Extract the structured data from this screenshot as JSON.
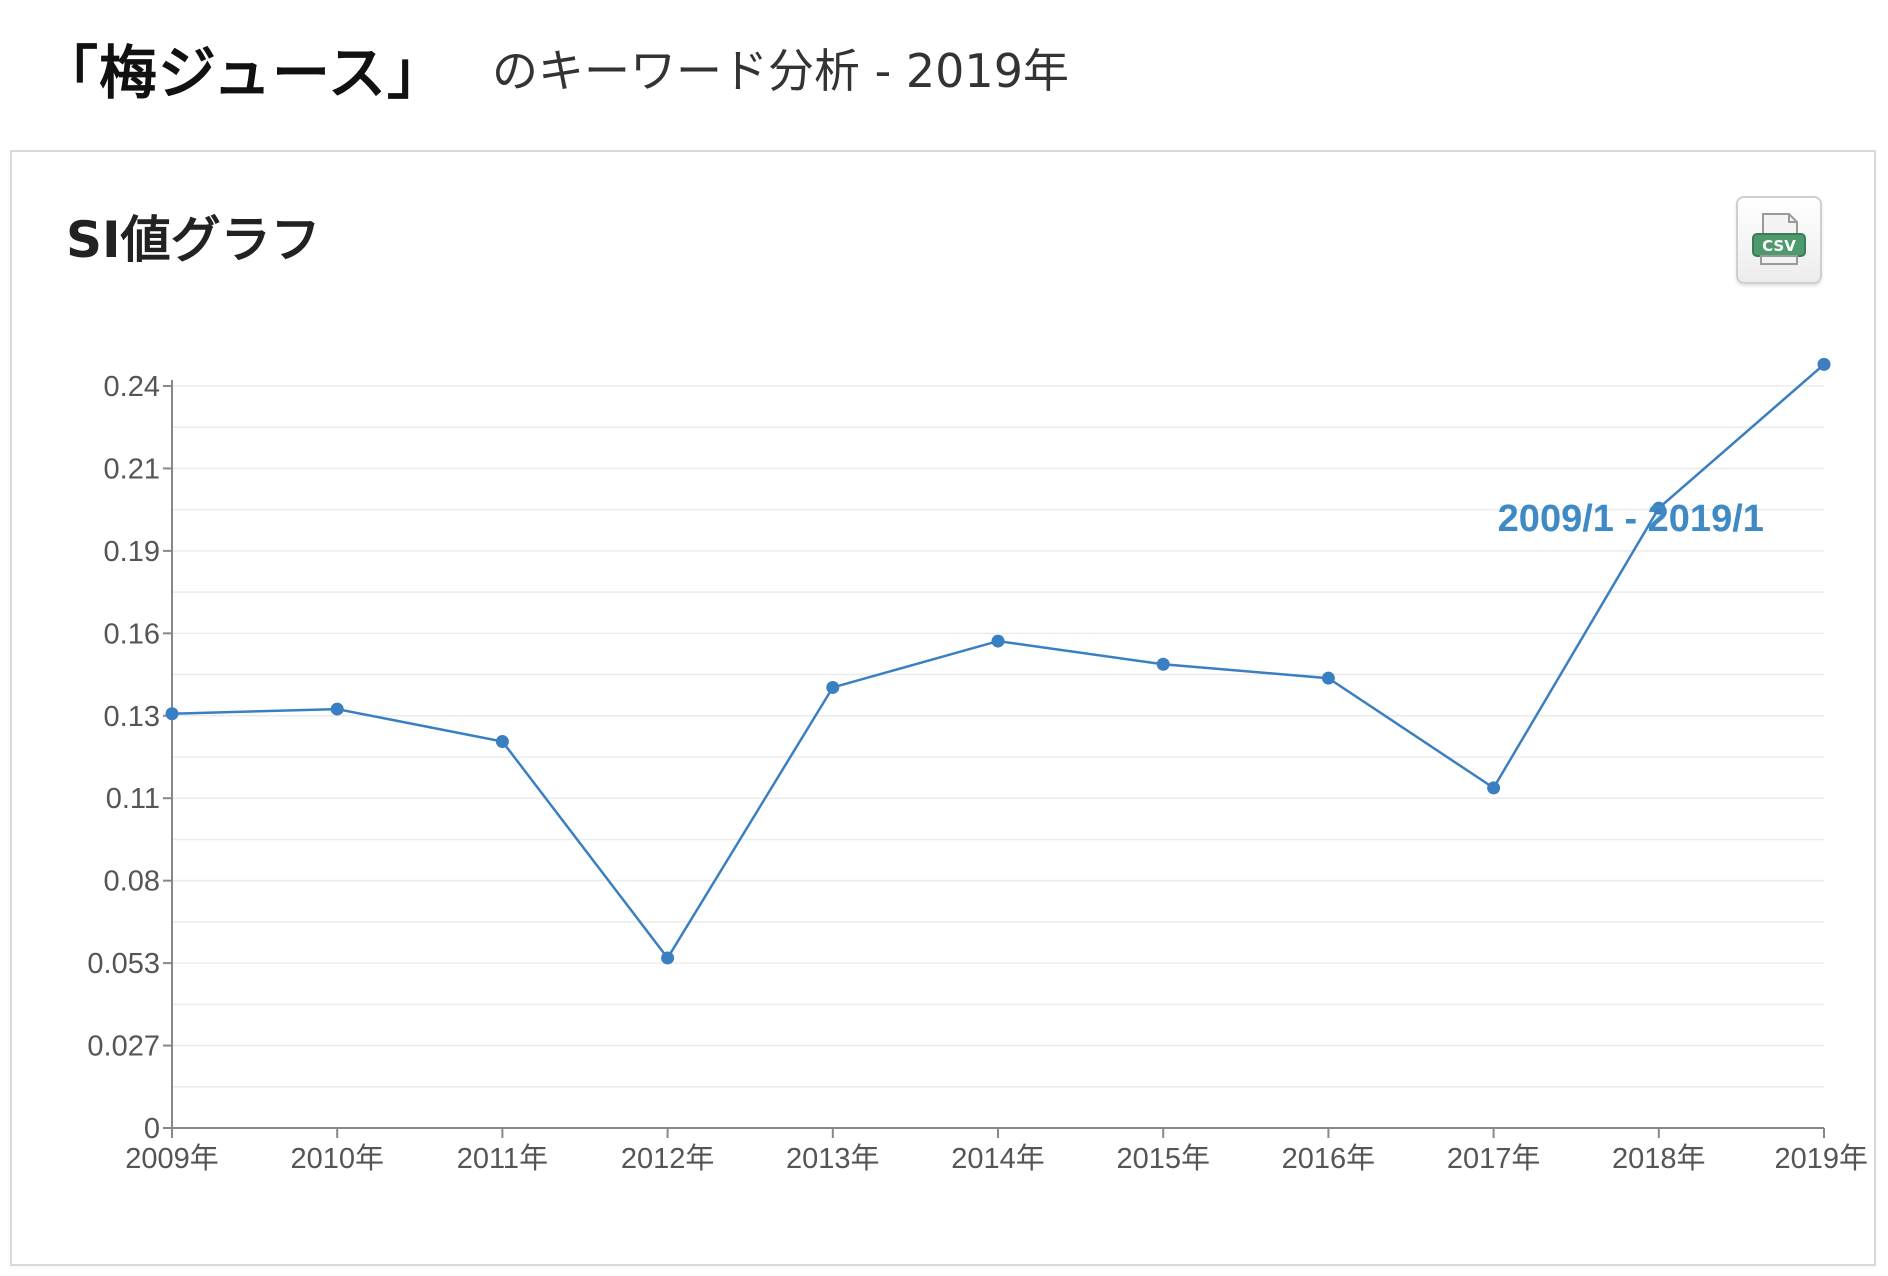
{
  "header": {
    "keyword": "「梅ジュース」",
    "subtitle": "のキーワード分析 - 2019年"
  },
  "panel": {
    "title": "SI値グラフ",
    "csv_button": {
      "icon": "csv-download-icon",
      "label": "CSV"
    }
  },
  "chart_data": {
    "type": "line",
    "title": "",
    "xlabel": "",
    "ylabel": "",
    "categories": [
      "2009年",
      "2010年",
      "2011年",
      "2012年",
      "2013年",
      "2014年",
      "2015年",
      "2016年",
      "2017年",
      "2018年",
      "2019年"
    ],
    "series": [
      {
        "values": [
          0.134,
          0.1355,
          0.125,
          0.055,
          0.1425,
          0.1575,
          0.15,
          0.1455,
          0.11,
          0.2005,
          0.247
        ],
        "color": "#3a7fc1"
      }
    ],
    "y_ticks": [
      0,
      0.027,
      0.053,
      0.08,
      0.11,
      0.13,
      0.16,
      0.19,
      0.21,
      0.24
    ],
    "y_tick_labels": [
      "0",
      "0.027",
      "0.053",
      "0.08",
      "0.11",
      "0.13",
      "0.16",
      "0.19",
      "0.21",
      "0.24"
    ],
    "ylim": [
      0,
      0.24
    ],
    "grid": true,
    "annotation": "2009/1 - 2019/1",
    "colors": {
      "line": "#3a7fc1",
      "annotation": "#3d8ac4",
      "grid": "#ebebeb",
      "axis": "#888888"
    }
  }
}
